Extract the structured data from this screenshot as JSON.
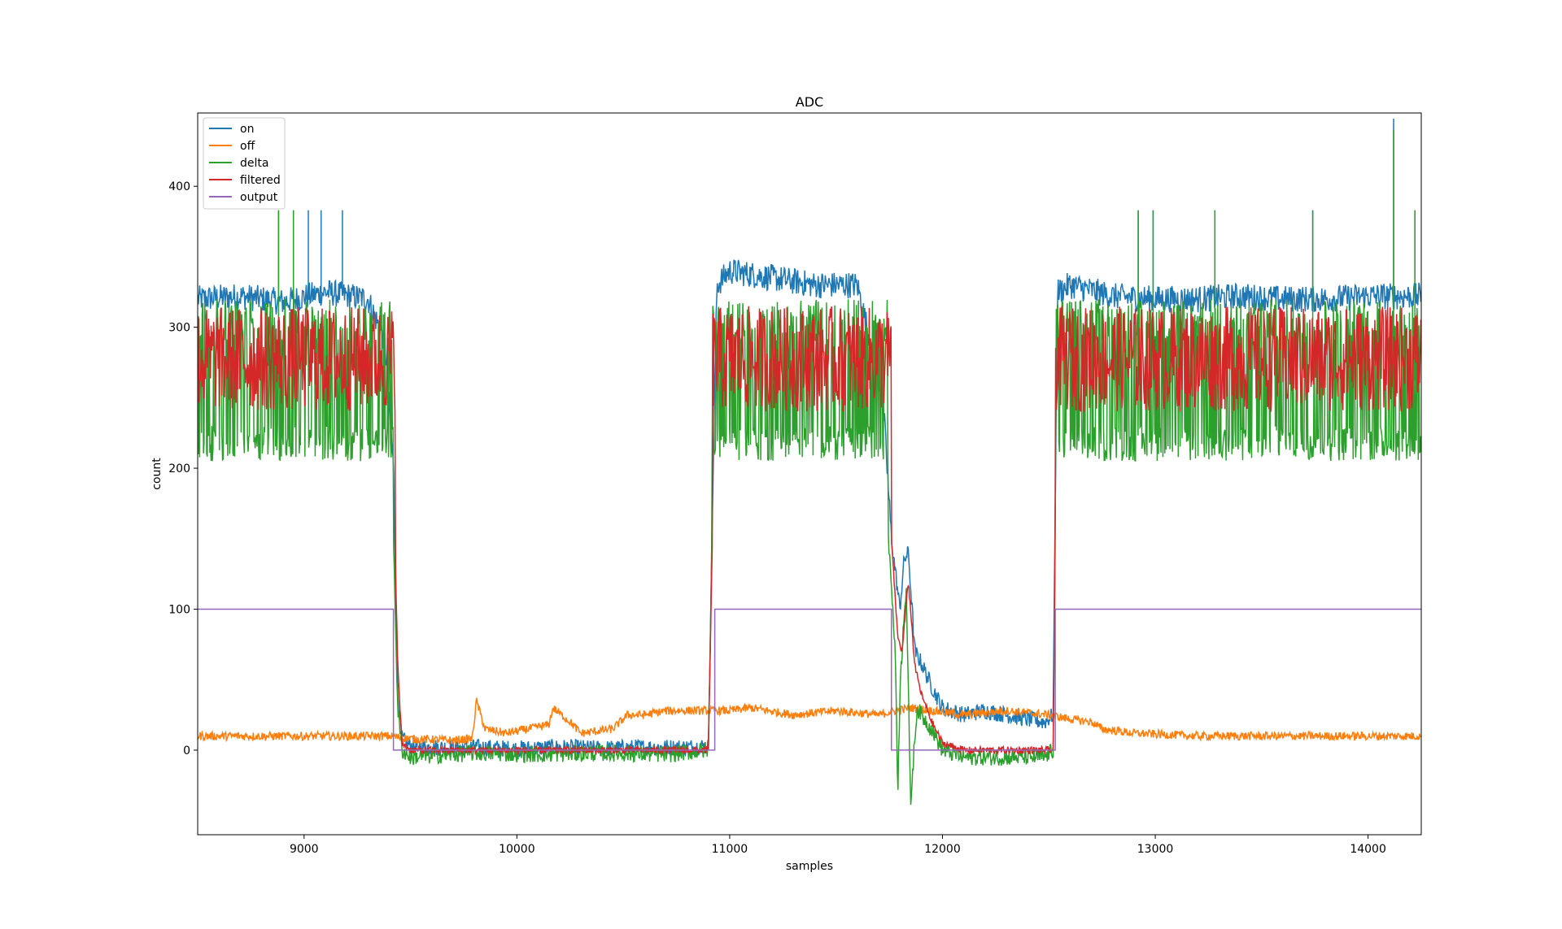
{
  "chart_data": {
    "type": "line",
    "title": "ADC",
    "xlabel": "samples",
    "ylabel": "count",
    "xlim": [
      8500,
      14250
    ],
    "ylim": [
      -60,
      452
    ],
    "xticks": [
      9000,
      10000,
      11000,
      12000,
      13000,
      14000
    ],
    "yticks": [
      0,
      100,
      200,
      300,
      400
    ],
    "grid": false,
    "legend": {
      "placement": "top-left",
      "entries": [
        "on",
        "off",
        "delta",
        "filtered",
        "output"
      ]
    },
    "colors": {
      "on": "#1f77b4",
      "off": "#ff7f0e",
      "delta": "#2ca02c",
      "filtered": "#d62728",
      "output": "#9467bd"
    },
    "series": [
      {
        "name": "on",
        "x": [
          8500,
          8700,
          8900,
          9100,
          9300,
          9380,
          9420,
          9440,
          9460,
          9500,
          9600,
          9800,
          10000,
          10200,
          10400,
          10600,
          10800,
          10900,
          10920,
          10940,
          11000,
          11200,
          11400,
          11600,
          11720,
          11760,
          11800,
          11820,
          11840,
          11870,
          11900,
          11950,
          12000,
          12100,
          12200,
          12300,
          12400,
          12480,
          12520,
          12540,
          12600,
          12800,
          13000,
          13200,
          13400,
          13600,
          13800,
          14000,
          14250
        ],
        "y": [
          320,
          322,
          318,
          325,
          320,
          290,
          200,
          40,
          8,
          3,
          2,
          2,
          1,
          2,
          1,
          2,
          2,
          3,
          180,
          330,
          340,
          335,
          330,
          330,
          250,
          150,
          100,
          135,
          140,
          70,
          62,
          45,
          30,
          25,
          28,
          25,
          22,
          20,
          25,
          325,
          330,
          322,
          320,
          320,
          322,
          320,
          320,
          322,
          322
        ],
        "spikes": [
          [
            8880,
            383
          ],
          [
            8950,
            383
          ],
          [
            9020,
            383
          ],
          [
            9080,
            383
          ],
          [
            9180,
            383
          ],
          [
            12920,
            383
          ],
          [
            12990,
            383
          ],
          [
            13280,
            383
          ],
          [
            13740,
            383
          ],
          [
            14120,
            448
          ],
          [
            14220,
            383
          ]
        ]
      },
      {
        "name": "off",
        "x": [
          8500,
          8800,
          9100,
          9400,
          9500,
          9700,
          9790,
          9810,
          9850,
          9950,
          10050,
          10150,
          10170,
          10250,
          10300,
          10450,
          10520,
          10600,
          10700,
          10800,
          10900,
          11000,
          11100,
          11300,
          11500,
          11700,
          11780,
          11850,
          11950,
          12100,
          12300,
          12500,
          12600,
          12700,
          12750,
          12900,
          13200,
          13600,
          14000,
          14250
        ],
        "y": [
          10,
          10,
          10,
          10,
          8,
          7,
          8,
          35,
          15,
          12,
          15,
          18,
          30,
          20,
          12,
          15,
          25,
          25,
          28,
          28,
          28,
          28,
          30,
          25,
          28,
          25,
          28,
          30,
          28,
          25,
          28,
          25,
          22,
          20,
          15,
          12,
          10,
          10,
          10,
          10
        ]
      },
      {
        "name": "delta",
        "x": [
          8500,
          8700,
          8900,
          9100,
          9300,
          9380,
          9420,
          9440,
          9460,
          9500,
          9800,
          10100,
          10400,
          10700,
          10900,
          10920,
          10940,
          11000,
          11200,
          11400,
          11600,
          11720,
          11760,
          11780,
          11790,
          11800,
          11820,
          11830,
          11850,
          11880,
          11900,
          11950,
          12000,
          12100,
          12300,
          12480,
          12520,
          12540,
          12600,
          12900,
          13200,
          13500,
          13800,
          14100,
          14250
        ],
        "y": [
          260,
          262,
          258,
          265,
          260,
          200,
          150,
          30,
          0,
          -5,
          -2,
          -3,
          -2,
          -3,
          0,
          180,
          300,
          270,
          265,
          262,
          262,
          200,
          120,
          60,
          -30,
          40,
          100,
          115,
          -38,
          30,
          25,
          15,
          0,
          -5,
          -5,
          -5,
          0,
          300,
          260,
          262,
          262,
          262,
          262,
          262,
          262
        ],
        "spikes": [
          [
            8880,
            383
          ],
          [
            8950,
            383
          ],
          [
            12920,
            383
          ],
          [
            12990,
            383
          ],
          [
            13280,
            383
          ],
          [
            13740,
            383
          ],
          [
            14120,
            440
          ],
          [
            14220,
            383
          ]
        ]
      },
      {
        "name": "filtered",
        "x": [
          8500,
          8700,
          8900,
          9100,
          9300,
          9380,
          9420,
          9440,
          9460,
          9500,
          9800,
          10100,
          10400,
          10700,
          10900,
          10920,
          10940,
          11000,
          11200,
          11400,
          11600,
          11720,
          11760,
          11790,
          11810,
          11840,
          11870,
          11900,
          11950,
          12000,
          12100,
          12300,
          12480,
          12520,
          12540,
          12600,
          12900,
          13200,
          13500,
          13800,
          14100,
          14250
        ],
        "y": [
          285,
          288,
          282,
          290,
          285,
          260,
          200,
          60,
          5,
          0,
          0,
          0,
          0,
          0,
          0,
          160,
          300,
          290,
          292,
          288,
          290,
          250,
          150,
          80,
          70,
          120,
          60,
          40,
          20,
          5,
          0,
          0,
          0,
          0,
          300,
          285,
          287,
          285,
          286,
          285,
          286,
          285
        ]
      },
      {
        "name": "output",
        "x": [
          8500,
          9420,
          9420,
          10930,
          10930,
          11760,
          11760,
          12530,
          12530,
          14250
        ],
        "y": [
          100,
          100,
          0,
          0,
          100,
          100,
          0,
          0,
          100,
          100
        ]
      }
    ]
  }
}
